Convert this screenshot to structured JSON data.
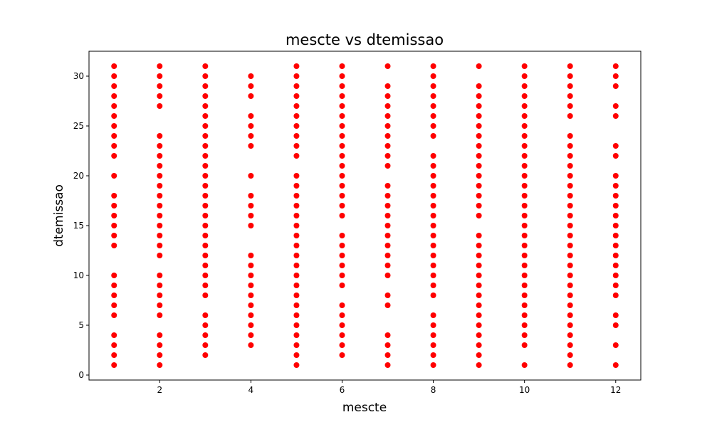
{
  "chart_data": {
    "type": "scatter",
    "title": "mescte vs dtemissao",
    "xlabel": "mescte",
    "ylabel": "dtemissao",
    "xlim": [
      0.45,
      12.55
    ],
    "ylim": [
      -0.5,
      32.5
    ],
    "xticks": [
      2,
      4,
      6,
      8,
      10,
      12
    ],
    "yticks": [
      0,
      5,
      10,
      15,
      20,
      25,
      30
    ],
    "grid": false,
    "point_color": "#ff0000",
    "series": [
      {
        "points_by_x": [
          {
            "x": 1,
            "y": [
              1,
              2,
              3,
              4,
              6,
              7,
              8,
              9,
              10,
              13,
              14,
              15,
              16,
              17,
              18,
              20,
              22,
              23,
              24,
              25,
              26,
              27,
              28,
              29,
              30,
              31
            ]
          },
          {
            "x": 2,
            "y": [
              1,
              2,
              3,
              4,
              6,
              7,
              8,
              9,
              10,
              12,
              13,
              14,
              15,
              16,
              17,
              18,
              19,
              20,
              21,
              22,
              23,
              24,
              27,
              28,
              29,
              30,
              31
            ]
          },
          {
            "x": 3,
            "y": [
              2,
              3,
              4,
              5,
              6,
              8,
              9,
              10,
              11,
              12,
              13,
              14,
              15,
              16,
              17,
              18,
              19,
              20,
              21,
              22,
              23,
              24,
              25,
              26,
              27,
              28,
              29,
              30,
              31
            ]
          },
          {
            "x": 4,
            "y": [
              3,
              4,
              5,
              6,
              7,
              8,
              9,
              10,
              11,
              12,
              15,
              16,
              17,
              18,
              20,
              23,
              24,
              25,
              26,
              28,
              29,
              30
            ]
          },
          {
            "x": 5,
            "y": [
              1,
              2,
              3,
              4,
              5,
              6,
              7,
              8,
              9,
              10,
              11,
              12,
              13,
              14,
              15,
              16,
              17,
              18,
              19,
              20,
              22,
              23,
              24,
              25,
              26,
              27,
              28,
              29,
              30,
              31
            ]
          },
          {
            "x": 6,
            "y": [
              2,
              3,
              4,
              5,
              6,
              7,
              9,
              10,
              11,
              12,
              13,
              14,
              16,
              17,
              18,
              19,
              20,
              21,
              22,
              23,
              24,
              25,
              26,
              27,
              28,
              29,
              30,
              31
            ]
          },
          {
            "x": 7,
            "y": [
              1,
              2,
              3,
              4,
              7,
              8,
              10,
              11,
              12,
              13,
              14,
              15,
              16,
              17,
              18,
              19,
              21,
              22,
              23,
              24,
              25,
              26,
              27,
              28,
              29,
              31
            ]
          },
          {
            "x": 8,
            "y": [
              1,
              2,
              3,
              4,
              5,
              6,
              8,
              9,
              10,
              11,
              12,
              13,
              14,
              15,
              16,
              17,
              18,
              19,
              20,
              21,
              22,
              24,
              25,
              26,
              27,
              28,
              29,
              30,
              31
            ]
          },
          {
            "x": 9,
            "y": [
              1,
              2,
              3,
              4,
              5,
              6,
              7,
              8,
              9,
              10,
              11,
              12,
              13,
              14,
              16,
              17,
              18,
              19,
              20,
              21,
              22,
              23,
              24,
              25,
              26,
              27,
              28,
              29,
              31
            ]
          },
          {
            "x": 10,
            "y": [
              1,
              3,
              4,
              5,
              6,
              7,
              8,
              9,
              10,
              11,
              12,
              13,
              14,
              15,
              16,
              17,
              18,
              19,
              20,
              21,
              22,
              23,
              24,
              25,
              26,
              27,
              28,
              29,
              30,
              31
            ]
          },
          {
            "x": 11,
            "y": [
              1,
              2,
              3,
              4,
              5,
              6,
              7,
              8,
              9,
              10,
              11,
              12,
              13,
              14,
              15,
              16,
              17,
              18,
              19,
              20,
              21,
              22,
              23,
              24,
              26,
              27,
              28,
              29,
              30,
              31
            ]
          },
          {
            "x": 12,
            "y": [
              1,
              3,
              5,
              6,
              8,
              9,
              10,
              11,
              12,
              13,
              14,
              15,
              16,
              17,
              18,
              19,
              20,
              22,
              23,
              26,
              27,
              29,
              30,
              31
            ]
          }
        ]
      }
    ]
  }
}
